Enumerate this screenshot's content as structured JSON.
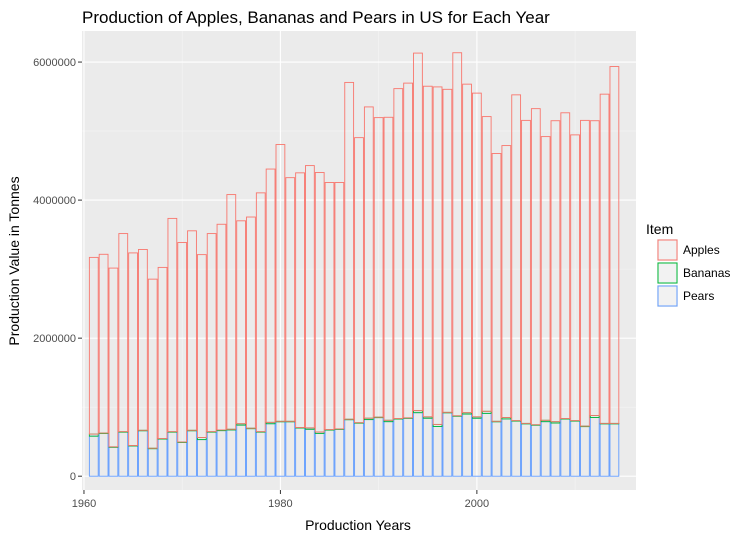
{
  "chart_data": {
    "type": "bar",
    "stacked": true,
    "title": "Production of Apples, Bananas and Pears in US for Each Year",
    "xlabel": "Production Years",
    "ylabel": "Production Value in Tonnes",
    "xlim": [
      1959.8,
      2016.2
    ],
    "ylim": [
      -200000,
      6450000
    ],
    "x_ticks": [
      "1960",
      "1980",
      "2000"
    ],
    "x_tick_values": [
      1960,
      1980,
      2000
    ],
    "y_ticks": [
      "0",
      "2000000",
      "4000000",
      "6000000"
    ],
    "y_tick_values": [
      0,
      2000000,
      4000000,
      6000000
    ],
    "grid": true,
    "legend": {
      "title": "Item",
      "position": "right",
      "entries": [
        {
          "label": "Apples",
          "color": "#f8766d"
        },
        {
          "label": "Bananas",
          "color": "#00ba38"
        },
        {
          "label": "Pears",
          "color": "#619cff"
        }
      ]
    },
    "panel_background": "#ebebeb",
    "years": [
      1961,
      1962,
      1963,
      1964,
      1965,
      1966,
      1967,
      1968,
      1969,
      1970,
      1971,
      1972,
      1973,
      1974,
      1975,
      1976,
      1977,
      1978,
      1979,
      1980,
      1981,
      1982,
      1983,
      1984,
      1985,
      1986,
      1987,
      1988,
      1989,
      1990,
      1991,
      1992,
      1993,
      1994,
      1995,
      1996,
      1997,
      1998,
      1999,
      2000,
      2001,
      2002,
      2003,
      2004,
      2005,
      2006,
      2007,
      2008,
      2009,
      2010,
      2011,
      2012,
      2013,
      2014
    ],
    "series": [
      {
        "name": "Pears",
        "color": "#619cff",
        "values": [
          580000,
          620000,
          420000,
          640000,
          440000,
          660000,
          400000,
          540000,
          640000,
          490000,
          660000,
          530000,
          640000,
          660000,
          670000,
          740000,
          690000,
          640000,
          760000,
          790000,
          790000,
          700000,
          680000,
          620000,
          670000,
          680000,
          820000,
          770000,
          820000,
          850000,
          790000,
          830000,
          840000,
          920000,
          840000,
          720000,
          920000,
          870000,
          900000,
          840000,
          910000,
          790000,
          830000,
          800000,
          760000,
          740000,
          790000,
          770000,
          830000,
          800000,
          720000,
          850000,
          760000,
          760000
        ]
      },
      {
        "name": "Bananas",
        "color": "#00ba38",
        "values": [
          30000,
          5000,
          5000,
          5000,
          5000,
          5000,
          5000,
          5000,
          5000,
          5000,
          5000,
          30000,
          5000,
          10000,
          10000,
          20000,
          5000,
          5000,
          20000,
          5000,
          5000,
          5000,
          20000,
          20000,
          5000,
          5000,
          5000,
          5000,
          20000,
          5000,
          20000,
          5000,
          5000,
          30000,
          20000,
          30000,
          5000,
          5000,
          20000,
          20000,
          30000,
          5000,
          20000,
          5000,
          5000,
          5000,
          20000,
          20000,
          5000,
          5000,
          5000,
          30000,
          5000,
          5000
        ]
      },
      {
        "name": "Apples",
        "color": "#f8766d",
        "values": [
          2560000,
          2590000,
          2590000,
          2870000,
          2790000,
          2620000,
          2450000,
          2480000,
          3090000,
          2890000,
          2890000,
          2650000,
          2870000,
          2980000,
          3400000,
          2940000,
          3060000,
          3460000,
          3670000,
          4010000,
          3530000,
          3690000,
          3800000,
          3760000,
          3580000,
          3570000,
          4880000,
          4130000,
          4510000,
          4340000,
          4390000,
          4780000,
          4850000,
          5180000,
          4790000,
          4890000,
          4680000,
          5260000,
          4760000,
          4690000,
          4270000,
          3880000,
          3940000,
          4720000,
          4390000,
          4580000,
          4110000,
          4360000,
          4430000,
          4140000,
          4430000,
          4270000,
          4770000,
          5170000
        ]
      }
    ]
  }
}
